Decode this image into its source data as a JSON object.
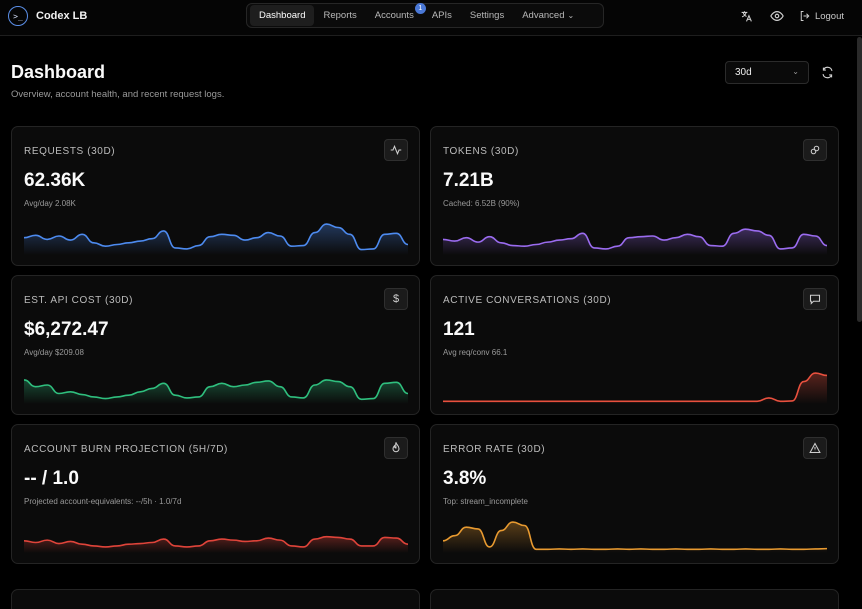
{
  "app": {
    "name": "Codex LB",
    "logo_glyph": ">_"
  },
  "nav": {
    "items": [
      {
        "label": "Dashboard",
        "active": true
      },
      {
        "label": "Reports",
        "active": false
      },
      {
        "label": "Accounts",
        "active": false,
        "badge": "1"
      },
      {
        "label": "APIs",
        "active": false
      },
      {
        "label": "Settings",
        "active": false
      },
      {
        "label": "Advanced",
        "active": false,
        "dropdown": true
      }
    ]
  },
  "toolbar": {
    "logout_label": "Logout",
    "icons": [
      "translate-icon",
      "eye-icon",
      "logout-icon"
    ]
  },
  "header": {
    "title": "Dashboard",
    "subtitle": "Overview, account health, and recent request logs.",
    "range_value": "30d"
  },
  "cards": [
    {
      "label": "REQUESTS (30D)",
      "value": "62.36K",
      "sub": "Avg/day 2.08K",
      "icon": "activity-icon",
      "color": "#4d8bf0",
      "series": [
        0.45,
        0.52,
        0.4,
        0.5,
        0.38,
        0.55,
        0.3,
        0.2,
        0.25,
        0.3,
        0.35,
        0.42,
        0.65,
        0.15,
        0.12,
        0.22,
        0.48,
        0.55,
        0.52,
        0.38,
        0.45,
        0.6,
        0.5,
        0.2,
        0.22,
        0.6,
        0.85,
        0.75,
        0.55,
        0.1,
        0.12,
        0.55,
        0.58,
        0.25
      ]
    },
    {
      "label": "TOKENS (30D)",
      "value": "7.21B",
      "sub": "Cached: 6.52B (90%)",
      "icon": "link-icon",
      "color": "#9b6cf0",
      "series": [
        0.4,
        0.35,
        0.45,
        0.32,
        0.48,
        0.3,
        0.22,
        0.2,
        0.25,
        0.32,
        0.38,
        0.42,
        0.58,
        0.15,
        0.12,
        0.2,
        0.45,
        0.48,
        0.5,
        0.38,
        0.45,
        0.55,
        0.48,
        0.22,
        0.2,
        0.58,
        0.7,
        0.65,
        0.52,
        0.12,
        0.15,
        0.55,
        0.5,
        0.22
      ]
    },
    {
      "label": "EST. API COST (30D)",
      "value": "$6,272.47",
      "sub": "Avg/day $209.08",
      "icon": "dollar-icon",
      "color": "#2fbf7e",
      "series": [
        0.65,
        0.45,
        0.5,
        0.25,
        0.3,
        0.22,
        0.15,
        0.1,
        0.15,
        0.2,
        0.3,
        0.4,
        0.55,
        0.2,
        0.12,
        0.15,
        0.45,
        0.55,
        0.45,
        0.5,
        0.58,
        0.62,
        0.45,
        0.15,
        0.12,
        0.5,
        0.65,
        0.6,
        0.45,
        0.08,
        0.1,
        0.55,
        0.58,
        0.25
      ]
    },
    {
      "label": "ACTIVE CONVERSATIONS (30D)",
      "value": "121",
      "sub": "Avg req/conv 66.1",
      "icon": "message-icon",
      "color": "#e8503e",
      "series": [
        0.02,
        0.02,
        0.02,
        0.02,
        0.02,
        0.02,
        0.02,
        0.02,
        0.02,
        0.02,
        0.02,
        0.02,
        0.02,
        0.02,
        0.02,
        0.02,
        0.02,
        0.02,
        0.02,
        0.02,
        0.02,
        0.02,
        0.02,
        0.02,
        0.02,
        0.02,
        0.02,
        0.02,
        0.12,
        0.02,
        0.03,
        0.6,
        0.85,
        0.78
      ]
    },
    {
      "label": "ACCOUNT BURN PROJECTION (5H/7D)",
      "value": "-- / 1.0",
      "sub": "Projected account-equivalents: --/5h · 1.0/7d",
      "icon": "flame-icon",
      "color": "#e0443a",
      "series": [
        0.3,
        0.25,
        0.32,
        0.22,
        0.28,
        0.2,
        0.15,
        0.12,
        0.15,
        0.2,
        0.22,
        0.25,
        0.35,
        0.15,
        0.12,
        0.15,
        0.3,
        0.35,
        0.32,
        0.28,
        0.3,
        0.38,
        0.32,
        0.15,
        0.12,
        0.35,
        0.42,
        0.4,
        0.35,
        0.15,
        0.15,
        0.4,
        0.38,
        0.2
      ]
    },
    {
      "label": "ERROR RATE (30D)",
      "value": "3.8%",
      "sub": "Top: stream_incomplete",
      "icon": "warning-icon",
      "color": "#e89a30",
      "series": [
        0.3,
        0.45,
        0.7,
        0.65,
        0.12,
        0.6,
        0.85,
        0.75,
        0.05,
        0.05,
        0.06,
        0.05,
        0.06,
        0.05,
        0.05,
        0.06,
        0.05,
        0.06,
        0.05,
        0.05,
        0.06,
        0.05,
        0.05,
        0.06,
        0.05,
        0.05,
        0.06,
        0.05,
        0.05,
        0.06,
        0.05,
        0.05,
        0.06,
        0.07
      ]
    }
  ]
}
